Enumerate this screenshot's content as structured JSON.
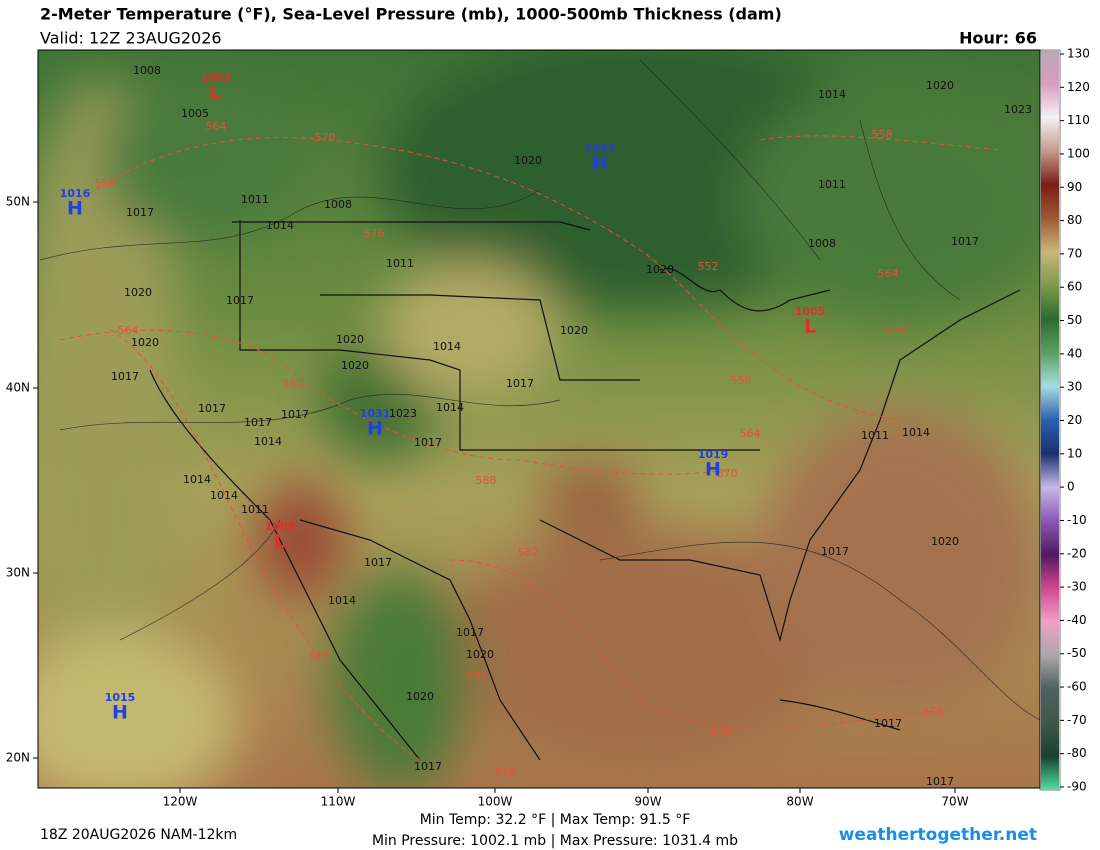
{
  "header": {
    "title": "2-Meter Temperature (°F), Sea-Level Pressure (mb), 1000-500mb Thickness (dam)",
    "valid": "Valid: 12Z 23AUG2026",
    "hour": "Hour: 66"
  },
  "map": {
    "lat_labels": [
      "50N",
      "40N",
      "30N",
      "20N"
    ],
    "lon_labels": [
      "120W",
      "110W",
      "100W",
      "90W",
      "80W",
      "70W"
    ],
    "pressure_centers": [
      {
        "letter": "L",
        "value": 1003,
        "color": "#e0302a"
      },
      {
        "letter": "H",
        "value": 1022,
        "color": "#2040e0"
      },
      {
        "letter": "H",
        "value": 1016,
        "color": "#2040e0"
      },
      {
        "letter": "H",
        "value": 1031,
        "color": "#2040e0"
      },
      {
        "letter": "H",
        "value": 1019,
        "color": "#2040e0"
      },
      {
        "letter": "L",
        "value": 1008,
        "color": "#e0302a"
      },
      {
        "letter": "L",
        "value": 1005,
        "color": "#e0302a"
      },
      {
        "letter": "H",
        "value": 1015,
        "color": "#2040e0"
      }
    ],
    "isobar_labels": [
      1008,
      1005,
      1011,
      1008,
      1017,
      1014,
      1011,
      1020,
      1017,
      1020,
      1017,
      1020,
      1014,
      1020,
      1017,
      1017,
      1017,
      1014,
      1023,
      1017,
      1014,
      1017,
      1014,
      1014,
      1011,
      1017,
      1014,
      1017,
      1020,
      1020,
      1017,
      1020,
      1020,
      1020,
      1011,
      1008,
      1017,
      1014,
      1020,
      1023,
      1014,
      1011,
      1017,
      1020,
      1017,
      1017
    ],
    "thickness_labels": [
      564,
      570,
      558,
      576,
      564,
      582,
      588,
      582,
      582,
      576,
      576,
      552,
      558,
      564,
      570,
      564,
      570,
      558,
      576,
      576
    ]
  },
  "colorbar": {
    "ticks": [
      130,
      120,
      110,
      100,
      90,
      80,
      70,
      60,
      50,
      40,
      30,
      20,
      10,
      0,
      -10,
      -20,
      -30,
      -40,
      -50,
      -60,
      -70,
      -80,
      -90
    ],
    "colors": [
      "#b9a7b5",
      "#d89dc0",
      "#f4f0f4",
      "#c89a8c",
      "#7a1c18",
      "#9b5a32",
      "#c8b878",
      "#7d9a4a",
      "#2e6a30",
      "#5aa060",
      "#a8dce0",
      "#2a60b0",
      "#1a3070",
      "#c8b8e8",
      "#8a58b8",
      "#501a60",
      "#d04890",
      "#f0a0c8",
      "#a8a8a8",
      "#506060",
      "#405848",
      "#1a4030",
      "#50e0a0"
    ]
  },
  "footer": {
    "run": "18Z 20AUG2026 NAM-12km",
    "temps": "Min Temp:  32.2 °F | Max Temp:  91.5 °F",
    "pressures": "Min Pressure: 1002.1 mb | Max Pressure: 1031.4 mb",
    "site": "weathertogether.net"
  }
}
